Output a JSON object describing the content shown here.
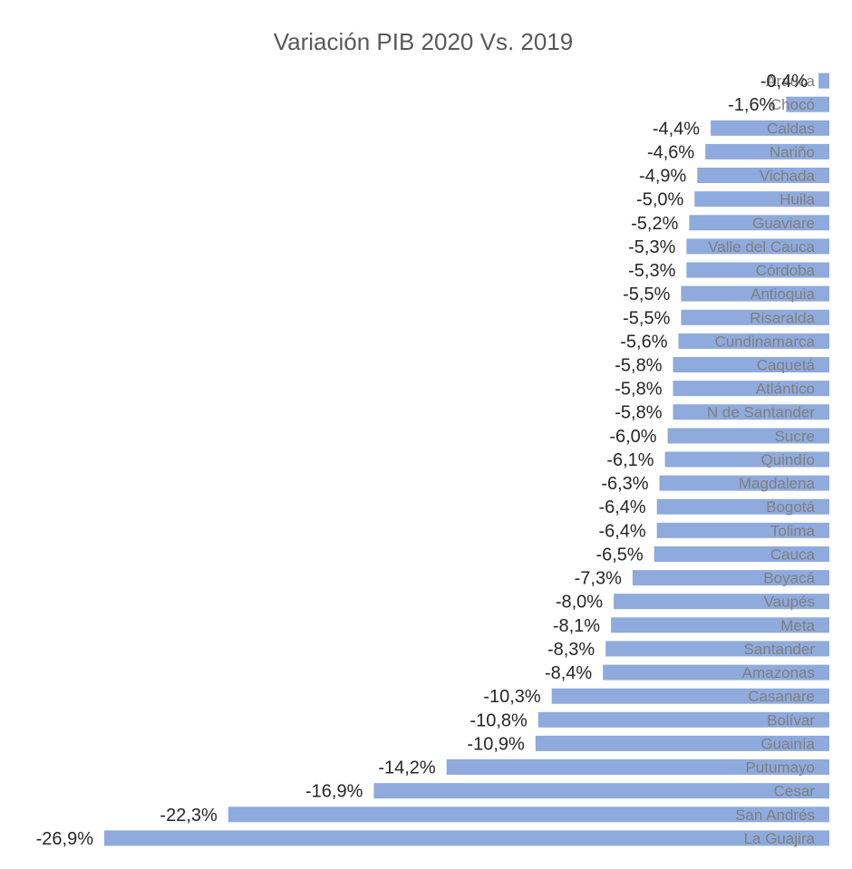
{
  "chart_data": {
    "type": "bar",
    "orientation": "horizontal",
    "title": "Variación PIB 2020 Vs. 2019",
    "xlabel": "",
    "ylabel": "",
    "grid": false,
    "legend": "none",
    "color": "#8faadc",
    "categories": [
      "Arauca",
      "Chocó",
      "Caldas",
      "Nariño",
      "Vichada",
      "Huila",
      "Guaviare",
      "Valle del Cauca",
      "Córdoba",
      "Antioquia",
      "Risaralda",
      "Cundinamarca",
      "Caquetá",
      "Atlántico",
      "N de Santander",
      "Sucre",
      "Quindío",
      "Magdalena",
      "Bogotá",
      "Tolima",
      "Cauca",
      "Boyacá",
      "Vaupés",
      "Meta",
      "Santander",
      "Amazonas",
      "Casanare",
      "Bolívar",
      "Guainía",
      "Putumayo",
      "Cesar",
      "San Andrés",
      "La Guajira"
    ],
    "values": [
      -0.4,
      -1.6,
      -4.4,
      -4.6,
      -4.9,
      -5.0,
      -5.2,
      -5.3,
      -5.3,
      -5.5,
      -5.5,
      -5.6,
      -5.8,
      -5.8,
      -5.8,
      -6.0,
      -6.1,
      -6.3,
      -6.4,
      -6.4,
      -6.5,
      -7.3,
      -8.0,
      -8.1,
      -8.3,
      -8.4,
      -10.3,
      -10.8,
      -10.9,
      -14.2,
      -16.9,
      -22.3,
      -26.9
    ],
    "labels": [
      "-0,4%",
      "-1,6%",
      "-4,4%",
      "-4,6%",
      "-4,9%",
      "-5,0%",
      "-5,2%",
      "-5,3%",
      "-5,3%",
      "-5,5%",
      "-5,5%",
      "-5,6%",
      "-5,8%",
      "-5,8%",
      "-5,8%",
      "-6,0%",
      "-6,1%",
      "-6,3%",
      "-6,4%",
      "-6,4%",
      "-6,5%",
      "-7,3%",
      "-8,0%",
      "-8,1%",
      "-8,3%",
      "-8,4%",
      "-10,3%",
      "-10,8%",
      "-10,9%",
      "-14,2%",
      "-16,9%",
      "-22,3%",
      "-26,9%"
    ],
    "xlim": [
      -26.9,
      0
    ]
  }
}
